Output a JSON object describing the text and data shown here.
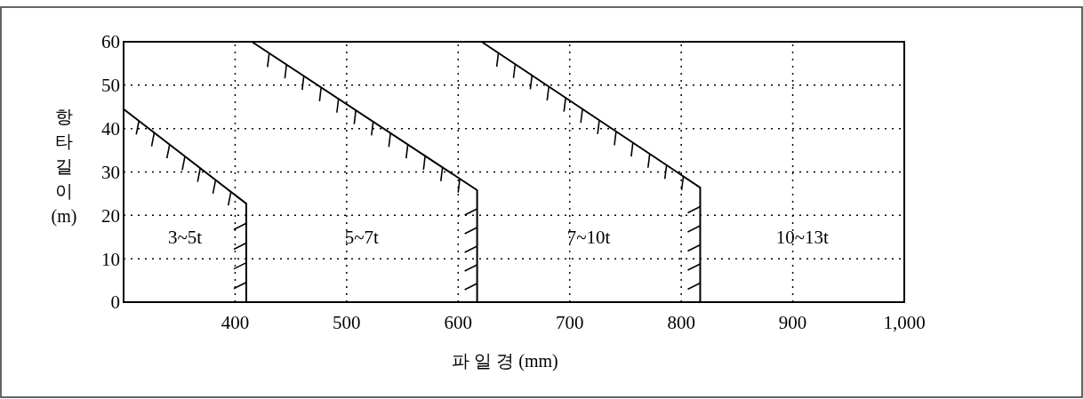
{
  "chart_data": {
    "type": "line",
    "xlabel": "파 일 경 (mm)",
    "ylabel": "항타길이(m)",
    "xlim": [
      300,
      1000
    ],
    "ylim": [
      0,
      60
    ],
    "xticks": [
      400,
      500,
      600,
      700,
      800,
      900,
      {
        "value": 1000,
        "label": "1,000"
      }
    ],
    "yticks": [
      0,
      10,
      20,
      30,
      40,
      50,
      60
    ],
    "grid": true,
    "line_style": "solid",
    "marker": "none",
    "series": [
      {
        "color": "#000000",
        "x": [
          300,
          410,
          410
        ],
        "values": [
          44.5,
          22.7,
          0
        ]
      },
      {
        "color": "#000000",
        "x": [
          415,
          617,
          617
        ],
        "values": [
          60,
          25.8,
          0
        ]
      },
      {
        "color": "#000000",
        "x": [
          621,
          817,
          817
        ],
        "values": [
          60,
          26.4,
          0
        ]
      }
    ],
    "annotations": [
      "3~5t",
      "5~7t",
      "7~10t",
      "10~13t"
    ]
  }
}
